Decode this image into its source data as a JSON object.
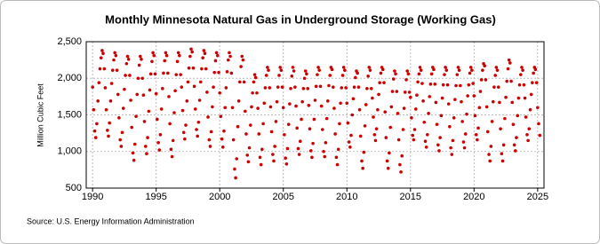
{
  "chart_data": {
    "type": "scatter",
    "title": "Monthly Minnesota Natural Gas in Underground Storage (Working Gas)",
    "y_label": "Million Cubic Feet",
    "source": "Source: U.S. Energy Information Administration",
    "color": "#cc0000",
    "grid": true,
    "xlim": [
      1989.5,
      2025.5
    ],
    "xticks": [
      1990,
      1995,
      2000,
      2005,
      2010,
      2015,
      2020,
      2025
    ],
    "ylim": [
      500,
      2500
    ],
    "yticks": [
      {
        "value": 500,
        "label": "500"
      },
      {
        "value": 1000,
        "label": "1,000"
      },
      {
        "value": 1500,
        "label": "1,500"
      },
      {
        "value": 2000,
        "label": "2,000"
      },
      {
        "value": 2500,
        "label": "2,500"
      }
    ],
    "x": [
      1990,
      1990.08,
      1990.17,
      1990.25,
      1990.33,
      1990.42,
      1990.5,
      1990.58,
      1990.67,
      1990.75,
      1990.83,
      1990.92,
      1991,
      1991.08,
      1991.17,
      1991.25,
      1991.33,
      1991.42,
      1991.5,
      1991.58,
      1991.67,
      1991.75,
      1991.83,
      1991.92,
      1992,
      1992.08,
      1992.17,
      1992.25,
      1992.33,
      1992.42,
      1992.5,
      1992.58,
      1992.67,
      1992.75,
      1992.83,
      1992.92,
      1993,
      1993.08,
      1993.17,
      1993.25,
      1993.33,
      1993.42,
      1993.5,
      1993.58,
      1993.67,
      1993.75,
      1993.83,
      1993.92,
      1994,
      1994.08,
      1994.17,
      1994.25,
      1994.33,
      1994.42,
      1994.5,
      1994.58,
      1994.67,
      1994.75,
      1994.83,
      1994.92,
      1995,
      1995.08,
      1995.17,
      1995.25,
      1995.33,
      1995.42,
      1995.5,
      1995.58,
      1995.67,
      1995.75,
      1995.83,
      1995.92,
      1996,
      1996.08,
      1996.17,
      1996.25,
      1996.33,
      1996.42,
      1996.5,
      1996.58,
      1996.67,
      1996.75,
      1996.83,
      1996.92,
      1997,
      1997.08,
      1997.17,
      1997.25,
      1997.33,
      1997.42,
      1997.5,
      1997.58,
      1997.67,
      1997.75,
      1997.83,
      1997.92,
      1998,
      1998.08,
      1998.17,
      1998.25,
      1998.33,
      1998.42,
      1998.5,
      1998.58,
      1998.67,
      1998.75,
      1998.83,
      1998.92,
      1999,
      1999.08,
      1999.17,
      1999.25,
      1999.33,
      1999.42,
      1999.5,
      1999.58,
      1999.67,
      1999.75,
      1999.83,
      1999.92,
      2000,
      2000.08,
      2000.17,
      2000.25,
      2000.33,
      2000.42,
      2000.5,
      2000.58,
      2000.67,
      2000.75,
      2000.83,
      2000.92,
      2001,
      2001.08,
      2001.17,
      2001.25,
      2001.33,
      2001.42,
      2001.5,
      2001.58,
      2001.67,
      2001.75,
      2001.83,
      2001.92,
      2002,
      2002.08,
      2002.17,
      2002.25,
      2002.33,
      2002.42,
      2002.5,
      2002.58,
      2002.67,
      2002.75,
      2002.83,
      2002.92,
      2003,
      2003.08,
      2003.17,
      2003.25,
      2003.33,
      2003.42,
      2003.5,
      2003.58,
      2003.67,
      2003.75,
      2003.83,
      2003.92,
      2004,
      2004.08,
      2004.17,
      2004.25,
      2004.33,
      2004.42,
      2004.5,
      2004.58,
      2004.67,
      2004.75,
      2004.83,
      2004.92,
      2005,
      2005.08,
      2005.17,
      2005.25,
      2005.33,
      2005.42,
      2005.5,
      2005.58,
      2005.67,
      2005.75,
      2005.83,
      2005.92,
      2006,
      2006.08,
      2006.17,
      2006.25,
      2006.33,
      2006.42,
      2006.5,
      2006.58,
      2006.67,
      2006.75,
      2006.83,
      2006.92,
      2007,
      2007.08,
      2007.17,
      2007.25,
      2007.33,
      2007.42,
      2007.5,
      2007.58,
      2007.67,
      2007.75,
      2007.83,
      2007.92,
      2008,
      2008.08,
      2008.17,
      2008.25,
      2008.33,
      2008.42,
      2008.5,
      2008.58,
      2008.67,
      2008.75,
      2008.83,
      2008.92,
      2009,
      2009.08,
      2009.17,
      2009.25,
      2009.33,
      2009.42,
      2009.5,
      2009.58,
      2009.67,
      2009.75,
      2009.83,
      2009.92,
      2010,
      2010.08,
      2010.17,
      2010.25,
      2010.33,
      2010.42,
      2010.5,
      2010.58,
      2010.67,
      2010.75,
      2010.83,
      2010.92,
      2011,
      2011.08,
      2011.17,
      2011.25,
      2011.33,
      2011.42,
      2011.5,
      2011.58,
      2011.67,
      2011.75,
      2011.83,
      2011.92,
      2012,
      2012.08,
      2012.17,
      2012.25,
      2012.33,
      2012.42,
      2012.5,
      2012.58,
      2012.67,
      2012.75,
      2012.83,
      2012.92,
      2013,
      2013.08,
      2013.17,
      2013.25,
      2013.33,
      2013.42,
      2013.5,
      2013.58,
      2013.67,
      2013.75,
      2013.83,
      2013.92,
      2014,
      2014.08,
      2014.17,
      2014.25,
      2014.33,
      2014.42,
      2014.5,
      2014.58,
      2014.67,
      2014.75,
      2014.83,
      2014.92,
      2015,
      2015.08,
      2015.17,
      2015.25,
      2015.33,
      2015.42,
      2015.5,
      2015.58,
      2015.67,
      2015.75,
      2015.83,
      2015.92,
      2016,
      2016.08,
      2016.17,
      2016.25,
      2016.33,
      2016.42,
      2016.5,
      2016.58,
      2016.67,
      2016.75,
      2016.83,
      2016.92,
      2017,
      2017.08,
      2017.17,
      2017.25,
      2017.33,
      2017.42,
      2017.5,
      2017.58,
      2017.67,
      2017.75,
      2017.83,
      2017.92,
      2018,
      2018.08,
      2018.17,
      2018.25,
      2018.33,
      2018.42,
      2018.5,
      2018.58,
      2018.67,
      2018.75,
      2018.83,
      2018.92,
      2019,
      2019.08,
      2019.17,
      2019.25,
      2019.33,
      2019.42,
      2019.5,
      2019.58,
      2019.67,
      2019.75,
      2019.83,
      2019.92,
      2020,
      2020.08,
      2020.17,
      2020.25,
      2020.33,
      2020.42,
      2020.5,
      2020.58,
      2020.67,
      2020.75,
      2020.83,
      2020.92,
      2021,
      2021.08,
      2021.17,
      2021.25,
      2021.33,
      2021.42,
      2021.5,
      2021.58,
      2021.67,
      2021.75,
      2021.83,
      2021.92,
      2022,
      2022.08,
      2022.17,
      2022.25,
      2022.33,
      2022.42,
      2022.5,
      2022.58,
      2022.67,
      2022.75,
      2022.83,
      2022.92,
      2023,
      2023.08,
      2023.17,
      2023.25,
      2023.33,
      2023.42,
      2023.5,
      2023.58,
      2023.67,
      2023.75,
      2023.83,
      2023.92,
      2024,
      2024.08,
      2024.17,
      2024.25,
      2024.33,
      2024.42,
      2024.5,
      2024.58,
      2024.67,
      2024.75,
      2024.83,
      2024.92,
      2025,
      2025.08,
      2025.17
    ],
    "values": [
      1880,
      1570,
      1280,
      1190,
      1380,
      1690,
      1940,
      2130,
      2280,
      2380,
      2340,
      2130,
      1870,
      1570,
      1290,
      1210,
      1390,
      1690,
      1930,
      2110,
      2250,
      2350,
      2310,
      2110,
      1780,
      1460,
      1160,
      1070,
      1260,
      1590,
      1850,
      2040,
      2200,
      2300,
      2260,
      2040,
      1700,
      1330,
      980,
      880,
      1100,
      1480,
      1780,
      2000,
      2180,
      2300,
      2260,
      2000,
      1770,
      1410,
      1070,
      970,
      1190,
      1550,
      1840,
      2060,
      2230,
      2350,
      2310,
      2060,
      1790,
      1440,
      1120,
      1020,
      1230,
      1580,
      1860,
      2070,
      2240,
      2350,
      2310,
      2070,
      1750,
      1380,
      1030,
      930,
      1150,
      1530,
      1830,
      2050,
      2230,
      2350,
      2310,
      2050,
      1880,
      1560,
      1260,
      1170,
      1360,
      1690,
      1950,
      2140,
      2300,
      2400,
      2360,
      2140,
      1890,
      1580,
      1300,
      1210,
      1400,
      1700,
      1950,
      2130,
      2280,
      2380,
      2340,
      2130,
      1810,
      1470,
      1160,
      1070,
      1270,
      1610,
      1880,
      2080,
      2240,
      2350,
      2310,
      2080,
      1800,
      1480,
      1170,
      1060,
      1280,
      1600,
      1870,
      2090,
      2250,
      2350,
      2300,
      2070,
      1600,
      1160,
      760,
      640,
      900,
      1340,
      1690,
      1950,
      2160,
      2300,
      2250,
      1950,
      1550,
      1240,
      950,
      860,
      1050,
      1360,
      1610,
      1800,
      1950,
      2050,
      2010,
      1800,
      1590,
      1240,
      920,
      820,
      1030,
      1380,
      1660,
      1870,
      2040,
      2150,
      2110,
      1870,
      1610,
      1270,
      960,
      870,
      1070,
      1410,
      1680,
      1880,
      2040,
      2150,
      2110,
      1880,
      1600,
      1230,
      910,
      830,
      1040,
      1370,
      1650,
      1860,
      2030,
      2150,
      2100,
      1880,
      1620,
      1320,
      1040,
      960,
      1140,
      1440,
      1680,
      1860,
      2000,
      2100,
      2060,
      1860,
      1630,
      1310,
      1010,
      920,
      1110,
      1440,
      1700,
      1890,
      2050,
      2150,
      2110,
      1890,
      1620,
      1300,
      1000,
      930,
      1120,
      1450,
      1690,
      1900,
      2040,
      2150,
      2120,
      1880,
      1590,
      1240,
      920,
      820,
      1030,
      1380,
      1660,
      1870,
      2040,
      2150,
      2110,
      1870,
      1660,
      1390,
      1130,
      1060,
      1220,
      1500,
      1720,
      1880,
      2010,
      2100,
      2070,
      1880,
      1570,
      1210,
      870,
      770,
      990,
      1350,
      1640,
      1860,
      2030,
      2150,
      2110,
      1860,
      1730,
      1470,
      1230,
      1150,
      1310,
      1570,
      1780,
      1940,
      2070,
      2150,
      2120,
      1940,
      1540,
      1190,
      870,
      770,
      980,
      1330,
      1610,
      1820,
      1990,
      2100,
      2060,
      1820,
      1520,
      1160,
      820,
      720,
      940,
      1300,
      1590,
      1810,
      1980,
      2100,
      2060,
      1810,
      1740,
      1460,
      1220,
      1160,
      1300,
      1580,
      1770,
      1950,
      2060,
      2150,
      2110,
      1930,
      1690,
      1400,
      1140,
      1060,
      1230,
      1520,
      1750,
      1920,
      2060,
      2150,
      2120,
      1920,
      1670,
      1370,
      1090,
      1010,
      1190,
      1490,
      1730,
      1910,
      2050,
      2150,
      2110,
      1910,
      1650,
      1340,
      1050,
      960,
      1150,
      1460,
      1710,
      1900,
      2050,
      2150,
      2110,
      1900,
      1680,
      1410,
      1130,
      1050,
      1240,
      1510,
      1760,
      1910,
      2070,
      2150,
      2110,
      1930,
      1760,
      1490,
      1230,
      1160,
      1320,
      1600,
      1820,
      1980,
      2110,
      2200,
      2170,
      1980,
      1610,
      1270,
      960,
      870,
      1070,
      1410,
      1680,
      1880,
      2040,
      2150,
      2110,
      1880,
      1670,
      1310,
      970,
      870,
      1090,
      1450,
      1740,
      1960,
      2130,
      2250,
      2210,
      1960,
      1670,
      1370,
      1090,
      1010,
      1190,
      1490,
      1730,
      1910,
      2050,
      2150,
      2110,
      1910,
      1730,
      1470,
      1230,
      1150,
      1310,
      1570,
      1780,
      1940,
      2070,
      2150,
      2120,
      1940,
      1600,
      1380,
      1220
    ]
  }
}
